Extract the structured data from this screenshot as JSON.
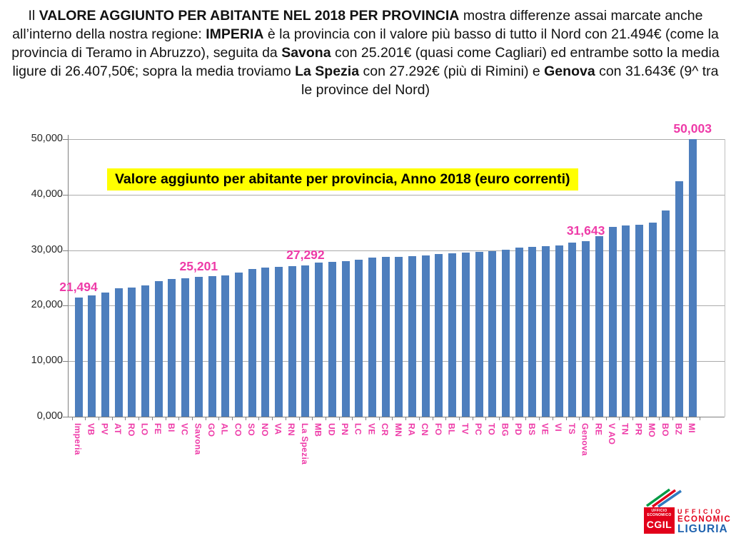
{
  "header": {
    "segments": [
      {
        "text": "Il ",
        "bold": false
      },
      {
        "text": "VALORE AGGIUNTO PER ABITANTE NEL 2018 PER PROVINCIA",
        "bold": true
      },
      {
        "text": " mostra differenze assai marcate anche all’interno della nostra regione: ",
        "bold": false
      },
      {
        "text": "IMPERIA",
        "bold": true
      },
      {
        "text": " è la provincia con il valore più basso di tutto il Nord con 21.494€ (come la provincia di Teramo in Abruzzo), seguita da ",
        "bold": false
      },
      {
        "text": "Savona",
        "bold": true
      },
      {
        "text": " con 25.201€ (quasi come Cagliari) ed entrambe sotto la media ligure di 26.407,50€; sopra la media troviamo ",
        "bold": false
      },
      {
        "text": "La Spezia",
        "bold": true
      },
      {
        "text": " con 27.292€ (più di Rimini) e ",
        "bold": false
      },
      {
        "text": "Genova",
        "bold": true
      },
      {
        "text": " con 31.643€ (9^ tra le province del Nord)",
        "bold": false
      }
    ]
  },
  "chart_data": {
    "type": "bar",
    "title": "Valore aggiunto per abitante per provincia, Anno 2018 (euro correnti)",
    "xlabel": "",
    "ylabel": "",
    "ylim": [
      0,
      50000
    ],
    "ytick_labels": [
      "0,000",
      "10,000",
      "20,000",
      "30,000",
      "40,000",
      "50,000"
    ],
    "grid": true,
    "legend_position": "none",
    "bar_color": "#4d7ebd",
    "category_label_color": "#ee3ba8",
    "categories": [
      "Imperia",
      "VB",
      "PV",
      "AT",
      "RO",
      "LO",
      "FE",
      "BI",
      "VC",
      "Savona",
      "GO",
      "AL",
      "CO",
      "SO",
      "NO",
      "VA",
      "RN",
      "La Spezia",
      "MB",
      "UD",
      "PN",
      "LC",
      "VE",
      "CR",
      "MN",
      "RA",
      "CN",
      "FO",
      "BL",
      "TV",
      "PC",
      "TO",
      "BG",
      "PD",
      "BS",
      "VE",
      "VI",
      "TS",
      "Genova",
      "RE",
      "V AO",
      "TN",
      "PR",
      "MO",
      "BO",
      "BZ",
      "MI"
    ],
    "values": [
      21494,
      21800,
      22400,
      23100,
      23250,
      23700,
      24400,
      24750,
      24900,
      25201,
      25300,
      25500,
      26000,
      26550,
      26900,
      27000,
      27100,
      27292,
      27700,
      27850,
      28000,
      28300,
      28600,
      28750,
      28850,
      28900,
      29000,
      29300,
      29400,
      29600,
      29700,
      29800,
      30100,
      30500,
      30550,
      30700,
      30900,
      31400,
      31643,
      32500,
      34200,
      34500,
      34600,
      35000,
      37200,
      42400,
      50003
    ],
    "data_labels": [
      {
        "category": "Imperia",
        "text": "21,494"
      },
      {
        "category": "Savona",
        "text": "25,201"
      },
      {
        "category": "La Spezia",
        "text": "27,292"
      },
      {
        "category": "Genova",
        "text": "31,643"
      },
      {
        "category": "MI",
        "text": "50,003"
      }
    ]
  },
  "logo": {
    "small_box_line1": "UFFICIO",
    "small_box_line2": "ECONOMICO",
    "cgil": "CGIL",
    "right_line1": "UFFICIO",
    "right_line2": "ECONOMICO",
    "right_line3": "LIGURIA"
  }
}
